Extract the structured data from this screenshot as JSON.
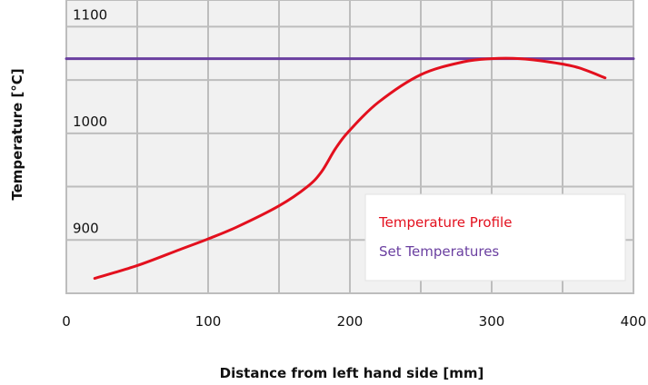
{
  "chart_data": {
    "type": "line",
    "title": "",
    "xlabel": "Distance from left hand side [mm]",
    "ylabel": "Temperature [°C]",
    "xlim": [
      0,
      400
    ],
    "ylim": [
      850,
      1125
    ],
    "x_ticks": [
      "0",
      "100",
      "200",
      "300",
      "400"
    ],
    "y_ticks": [
      "900",
      "1000",
      "1100"
    ],
    "grid": true,
    "legend_position": "bottom-right",
    "series": [
      {
        "name": "Temperature Profile",
        "color": "#e3101e",
        "x": [
          20,
          50,
          80,
          100,
          120,
          150,
          170,
          180,
          190,
          200,
          220,
          250,
          280,
          300,
          320,
          340,
          360,
          380
        ],
        "y": [
          864,
          876,
          891,
          901,
          912,
          932,
          950,
          964,
          986,
          1003,
          1029,
          1055,
          1067,
          1070,
          1070,
          1067,
          1062,
          1052
        ]
      },
      {
        "name": "Set Temperatures",
        "color": "#6a3fa0",
        "x": [
          0,
          400
        ],
        "y": [
          1070,
          1070
        ]
      }
    ]
  }
}
